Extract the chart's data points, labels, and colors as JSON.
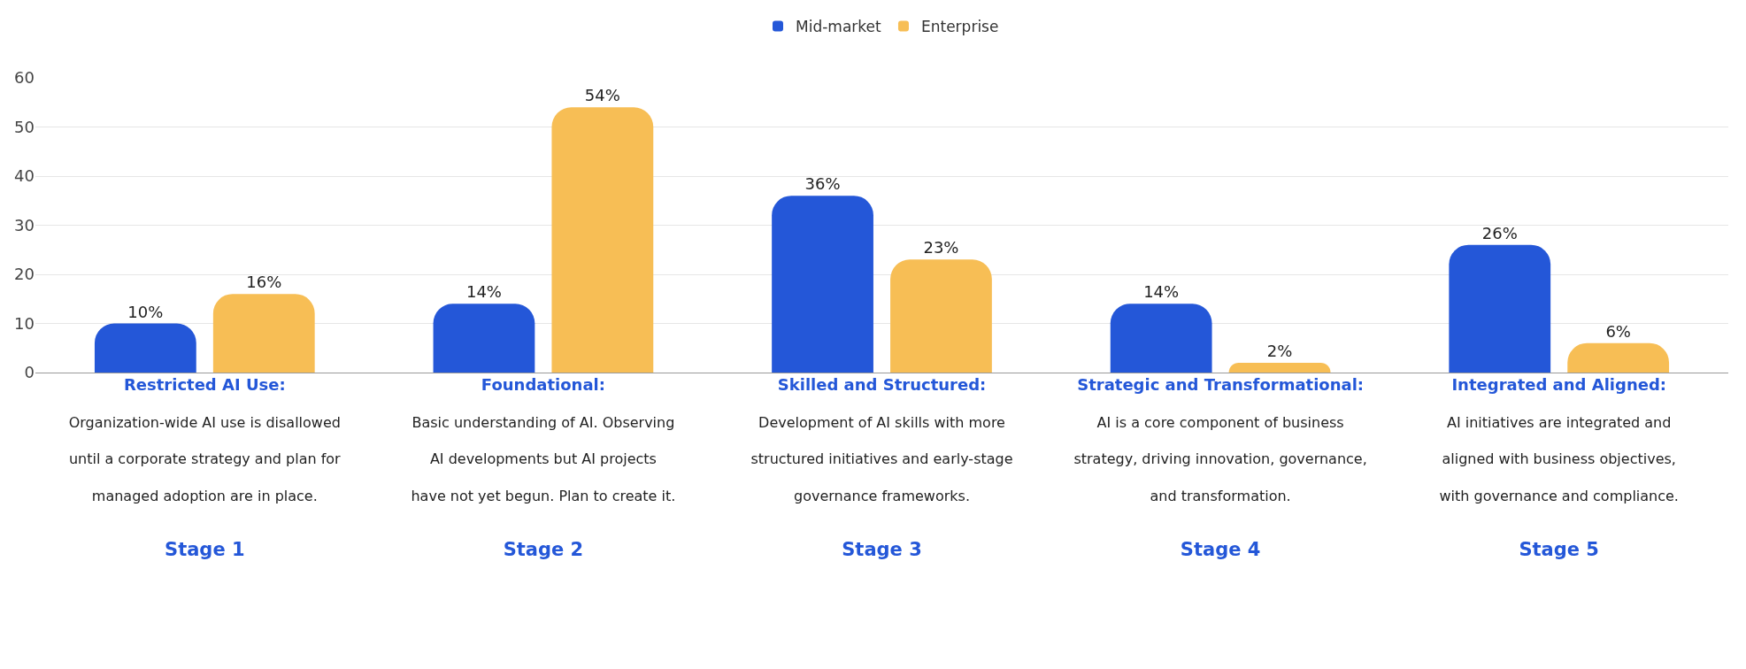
{
  "chart_data": {
    "type": "bar",
    "categories": [
      "Restricted AI Use:\nOrganization-wide AI use is disallowed\nuntil a corporate strategy and plan for\nmanaged adoption are in place.\nStage 1",
      "Foundational:\nBasic understanding of AI. Observing\nAI developments but AI projects\nhave not yet begun. Plan to create it.\nStage 2",
      "Skilled and Structured:\nDevelopment of AI skills with more\nstructured initiatives and early-stage\ngovernance frameworks.\nStage 3",
      "Strategic and Transformational:\nAI is a core component of business\nstrategy, driving innovation, governance,\nand transformation.\nStage 4",
      "Integrated and Aligned:\nAI initiatives are integrated and\naligned with business objectives,\nwith governance and compliance.\nStage 5"
    ],
    "series": [
      {
        "name": "Mid-market",
        "color": "#2457d8",
        "values": [
          10,
          14,
          36,
          14,
          26
        ],
        "value_labels": [
          "10%",
          "14%",
          "36%",
          "14%",
          "26%"
        ]
      },
      {
        "name": "Enterprise",
        "color": "#f7be55",
        "values": [
          16,
          54,
          23,
          2,
          6
        ],
        "value_labels": [
          "16%",
          "54%",
          "23%",
          "2%",
          "6%"
        ]
      }
    ],
    "ylim": [
      0,
      60
    ],
    "yticks": [
      0,
      10,
      20,
      30,
      40,
      50,
      60
    ],
    "grid": "y",
    "legend": "top"
  }
}
